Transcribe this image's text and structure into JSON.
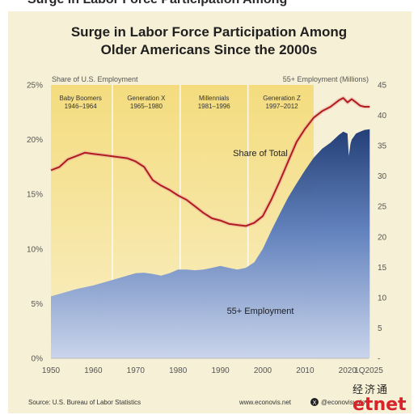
{
  "chart_data": {
    "type": "area",
    "title_lines": [
      "Surge in Labor Force Participation Among",
      "Older Americans Since the 2000s"
    ],
    "left_axis": {
      "label": "Share of U.S. Employment",
      "ticks": [
        "0%",
        "5%",
        "10%",
        "15%",
        "20%",
        "25%"
      ],
      "range": [
        0,
        25
      ]
    },
    "right_axis": {
      "label": "55+ Employment (Millions)",
      "ticks": [
        "-",
        "5",
        "10",
        "15",
        "20",
        "25",
        "30",
        "35",
        "40",
        "45"
      ],
      "range": [
        0,
        45
      ]
    },
    "x_axis": {
      "ticks": [
        "1950",
        "1960",
        "1970",
        "1980",
        "1990",
        "2000",
        "2010",
        "2020",
        "1Q2025"
      ],
      "range": [
        1950,
        2025
      ]
    },
    "generations": [
      {
        "name": "Baby Boomers",
        "years": "1946–1964",
        "start": 1950,
        "end": 1964
      },
      {
        "name": "Generation X",
        "years": "1965–1980",
        "start": 1965,
        "end": 1980
      },
      {
        "name": "Millennials",
        "years": "1981–1996",
        "start": 1981,
        "end": 1996
      },
      {
        "name": "Generation Z",
        "years": "1997–2012",
        "start": 1997,
        "end": 2012
      }
    ],
    "series": [
      {
        "name": "Share of Total",
        "axis": "left",
        "color": "#b01c1c",
        "x": [
          1950,
          1952,
          1954,
          1956,
          1958,
          1960,
          1962,
          1964,
          1966,
          1968,
          1970,
          1972,
          1974,
          1976,
          1978,
          1980,
          1982,
          1984,
          1986,
          1988,
          1990,
          1992,
          1994,
          1996,
          1998,
          2000,
          2002,
          2004,
          2006,
          2008,
          2010,
          2012,
          2014,
          2016,
          2018,
          2019,
          2020,
          2021,
          2022,
          2023,
          2024,
          2025.25
        ],
        "values": [
          17.2,
          17.5,
          18.2,
          18.5,
          18.8,
          18.7,
          18.6,
          18.5,
          18.4,
          18.3,
          18.0,
          17.5,
          16.3,
          15.8,
          15.4,
          14.9,
          14.5,
          13.9,
          13.3,
          12.8,
          12.6,
          12.3,
          12.2,
          12.1,
          12.4,
          13.0,
          14.5,
          16.2,
          18.0,
          19.8,
          21.0,
          22.0,
          22.6,
          23.0,
          23.6,
          23.8,
          23.4,
          23.7,
          23.4,
          23.1,
          23.0,
          23.0
        ]
      },
      {
        "name": "55+ Employment",
        "axis": "right",
        "color_top": "#1e3a74",
        "color_bottom": "#c9d4ec",
        "x": [
          1950,
          1952,
          1954,
          1956,
          1958,
          1960,
          1962,
          1964,
          1966,
          1968,
          1970,
          1972,
          1974,
          1976,
          1978,
          1980,
          1982,
          1984,
          1986,
          1988,
          1990,
          1992,
          1994,
          1996,
          1998,
          2000,
          2002,
          2004,
          2006,
          2008,
          2010,
          2012,
          2014,
          2016,
          2018,
          2019,
          2020,
          2020.3,
          2020.7,
          2021,
          2022,
          2023,
          2024,
          2025.25
        ],
        "values": [
          10.2,
          10.6,
          11.0,
          11.4,
          11.7,
          12.0,
          12.4,
          12.8,
          13.2,
          13.6,
          14.0,
          14.1,
          13.9,
          13.6,
          14.0,
          14.6,
          14.6,
          14.5,
          14.6,
          14.9,
          15.2,
          14.9,
          14.6,
          14.9,
          15.8,
          18.0,
          21.0,
          23.8,
          26.5,
          28.8,
          31.0,
          33.0,
          34.5,
          35.5,
          36.8,
          37.3,
          37.0,
          33.3,
          35.3,
          36.0,
          37.0,
          37.3,
          37.6,
          37.7
        ]
      }
    ],
    "annotations": [
      "Share of Total",
      "55+ Employment"
    ]
  },
  "footer": {
    "source": "Source: U.S. Bureau of Labor Statistics",
    "site": "www.econovis.net",
    "handle": "@econovisuals"
  },
  "watermark": {
    "line1": "经济通",
    "line2": "etnet"
  },
  "top_cut_text": "Surge in Labor Force Participation Among"
}
